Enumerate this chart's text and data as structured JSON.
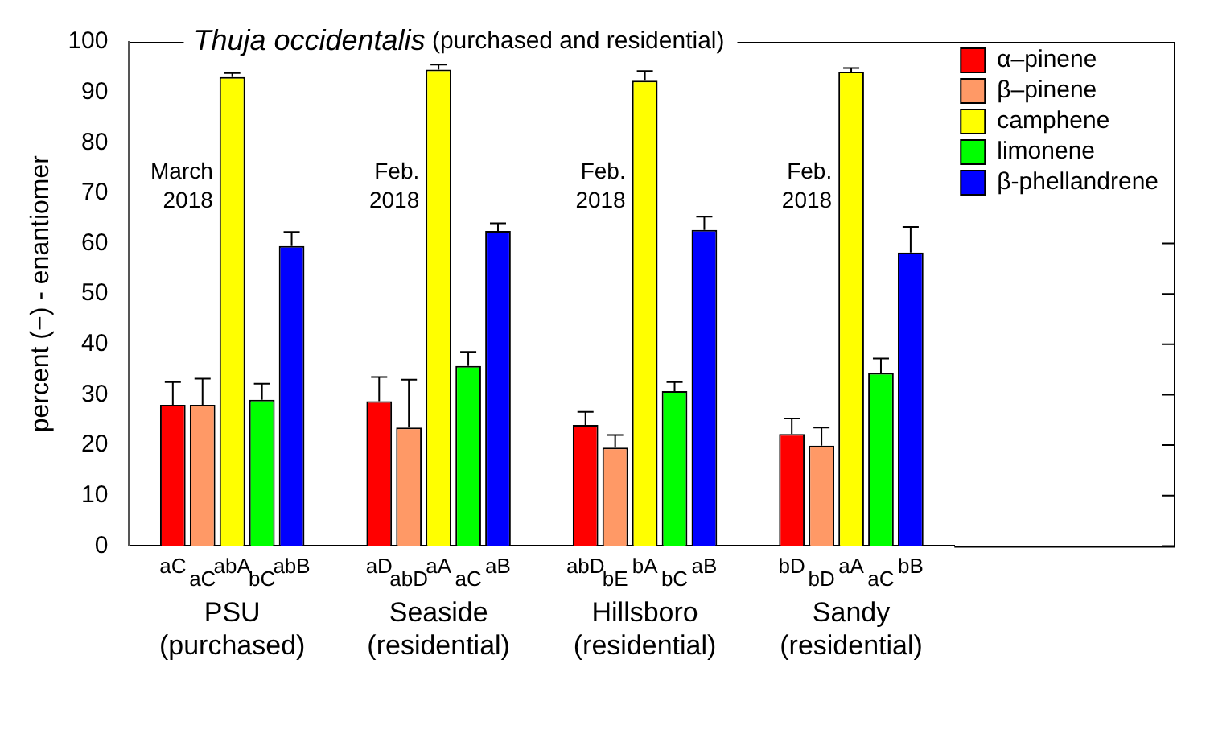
{
  "chart_data": {
    "type": "bar",
    "title": "Thuja occidentalis (purchased and residential)",
    "ylabel": "percent (−) - enantiomer",
    "categories": [
      "PSU (purchased)",
      "Seaside (residential)",
      "Hillsboro (residential)",
      "Sandy (residential)"
    ],
    "series": [
      {
        "name": "α–pinene",
        "color": "#ff0000",
        "values": [
          28,
          28.7,
          24,
          22.2
        ],
        "errors": [
          [
            28,
            32.5
          ],
          [
            28.7,
            33.5
          ],
          [
            24,
            26.6
          ],
          [
            22.2,
            25.3
          ]
        ],
        "value_labels": [
          "aC",
          "aD",
          "abD",
          "bD"
        ]
      },
      {
        "name": "β–pinene",
        "color": "#ff9966",
        "values": [
          28,
          23.5,
          19.5,
          19.9
        ],
        "errors": [
          [
            28,
            33.2
          ],
          [
            23.5,
            33
          ],
          [
            19.5,
            22
          ],
          [
            19.9,
            23.5
          ]
        ],
        "value_labels": [
          "aC",
          "abD",
          "bE",
          "bD"
        ]
      },
      {
        "name": "camphene",
        "color": "#ffff00",
        "values": [
          93,
          94.5,
          92.3,
          94.1
        ],
        "errors": [
          [
            93,
            93.8
          ],
          [
            94.5,
            95.5
          ],
          [
            92.3,
            94.2
          ],
          [
            94.1,
            94.8
          ]
        ],
        "value_labels": [
          "abA",
          "aA",
          "bA",
          "aA"
        ]
      },
      {
        "name": "limonene",
        "color": "#00ff00",
        "values": [
          29,
          35.7,
          30.7,
          34.3
        ],
        "errors": [
          [
            29,
            32.2
          ],
          [
            35.7,
            38.5
          ],
          [
            30.7,
            32.5
          ],
          [
            34.3,
            37.2
          ]
        ],
        "value_labels": [
          "bC",
          "aC",
          "bC",
          "aC"
        ]
      },
      {
        "name": "β-phellandrene",
        "color": "#0000ff",
        "values": [
          59.5,
          62.5,
          62.7,
          58.2
        ],
        "errors": [
          [
            59.5,
            62.3
          ],
          [
            62.5,
            64
          ],
          [
            62.7,
            65.3
          ],
          [
            58.2,
            63.3
          ]
        ],
        "value_labels": [
          "abB",
          "aB",
          "aB",
          "bB"
        ]
      }
    ],
    "annotations": [
      "March 2018",
      "Feb. 2018",
      "Feb. 2018",
      "Feb. 2018"
    ],
    "ylim": [
      0,
      100
    ],
    "yticks": [
      0,
      10,
      20,
      30,
      40,
      50,
      60,
      70,
      80,
      90,
      100
    ],
    "grid": false,
    "legend": "top right"
  }
}
